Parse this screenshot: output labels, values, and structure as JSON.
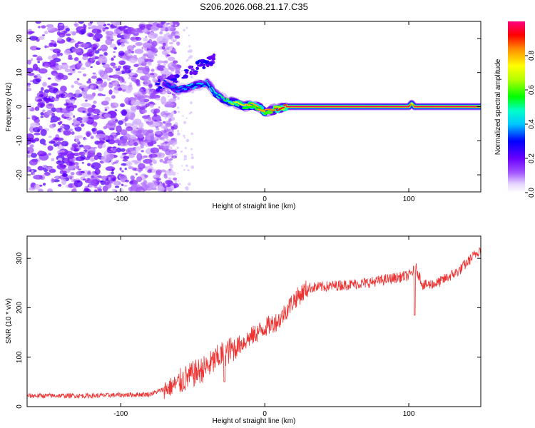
{
  "chart_data": [
    {
      "type": "heatmap",
      "title": "S206.2026.068.21.17.C35",
      "xlabel": "Height of straight line (km)",
      "ylabel": "Frequency (Hz)",
      "xlim": [
        -165,
        150
      ],
      "ylim": [
        -25,
        25
      ],
      "xticks": [
        -100,
        0,
        100
      ],
      "xtick_labels": [
        "-100",
        "0",
        "100"
      ],
      "yticks": [
        -20,
        -10,
        0,
        10,
        20
      ],
      "ytick_labels": [
        "-20",
        "-10",
        "0",
        "10",
        "20"
      ],
      "colorbar": {
        "label": "Normalized spectral amplitude",
        "range": [
          0,
          1
        ],
        "ticks": [
          0.0,
          0.2,
          0.4,
          0.6,
          0.8
        ],
        "tick_labels": [
          "0.0",
          "0.2",
          "0.4",
          "0.6",
          "0.8"
        ]
      },
      "tone_track": [
        {
          "x": -70,
          "y": 7,
          "a": 0.3
        },
        {
          "x": -60,
          "y": 5,
          "a": 0.35
        },
        {
          "x": -50,
          "y": 6,
          "a": 0.4
        },
        {
          "x": -40,
          "y": 7,
          "a": 0.4
        },
        {
          "x": -35,
          "y": 4,
          "a": 0.45
        },
        {
          "x": -30,
          "y": 2.5,
          "a": 0.5
        },
        {
          "x": -25,
          "y": 1.5,
          "a": 0.6
        },
        {
          "x": -20,
          "y": 1,
          "a": 0.7
        },
        {
          "x": -15,
          "y": 0.2,
          "a": 0.75
        },
        {
          "x": -8,
          "y": 0.5,
          "a": 0.8
        },
        {
          "x": -3,
          "y": -0.5,
          "a": 0.8
        },
        {
          "x": 0,
          "y": -1.5,
          "a": 0.8
        },
        {
          "x": 5,
          "y": -1,
          "a": 0.85
        },
        {
          "x": 10,
          "y": -0.5,
          "a": 0.9
        },
        {
          "x": 15,
          "y": 0,
          "a": 0.95
        },
        {
          "x": 100,
          "y": 0,
          "a": 0.95
        },
        {
          "x": 102,
          "y": 1,
          "a": 0.7
        },
        {
          "x": 104,
          "y": 0,
          "a": 0.95
        },
        {
          "x": 150,
          "y": 0,
          "a": 0.95
        }
      ]
    },
    {
      "type": "line",
      "xlabel": "Height of straight line (km)",
      "ylabel": "SNR (10 * v/v)",
      "xlim": [
        -165,
        150
      ],
      "ylim": [
        0,
        345
      ],
      "xticks": [
        -100,
        0,
        100
      ],
      "xtick_labels": [
        "-100",
        "0",
        "100"
      ],
      "yticks": [
        0,
        100,
        200,
        300
      ],
      "ytick_labels": [
        "0",
        "100",
        "200",
        "300"
      ],
      "color": "#ee3333",
      "trend": [
        {
          "x": -165,
          "y": 22
        },
        {
          "x": -120,
          "y": 22
        },
        {
          "x": -80,
          "y": 25
        },
        {
          "x": -65,
          "y": 40
        },
        {
          "x": -50,
          "y": 65
        },
        {
          "x": -40,
          "y": 80
        },
        {
          "x": -30,
          "y": 105
        },
        {
          "x": -20,
          "y": 120
        },
        {
          "x": -10,
          "y": 140
        },
        {
          "x": 0,
          "y": 160
        },
        {
          "x": 10,
          "y": 175
        },
        {
          "x": 20,
          "y": 215
        },
        {
          "x": 30,
          "y": 240
        },
        {
          "x": 50,
          "y": 245
        },
        {
          "x": 70,
          "y": 250
        },
        {
          "x": 90,
          "y": 260
        },
        {
          "x": 100,
          "y": 265
        },
        {
          "x": 105,
          "y": 280
        },
        {
          "x": 110,
          "y": 245
        },
        {
          "x": 120,
          "y": 250
        },
        {
          "x": 135,
          "y": 275
        },
        {
          "x": 150,
          "y": 320
        }
      ],
      "dips": [
        {
          "x": 104,
          "y": 185
        },
        {
          "x": -28,
          "y": 50
        }
      ]
    }
  ]
}
